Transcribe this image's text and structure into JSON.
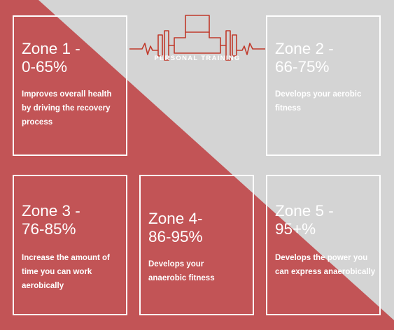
{
  "colors": {
    "red": "#c25456",
    "grey": "#d4d4d4",
    "white": "#ffffff"
  },
  "logo": {
    "icon": "dumbbell-heartbeat-icon",
    "text": "PERSONAL TRAINING"
  },
  "zones": [
    {
      "title_line1": "Zone 1 -",
      "title_line2": "0-65%",
      "description": "Improves overall health by driving the recovery process"
    },
    {
      "title_line1": "Zone 2 -",
      "title_line2": "66-75%",
      "description": "Develops your aerobic fitness"
    },
    {
      "title_line1": "Zone 3 -",
      "title_line2": "76-85%",
      "description": "Increase the amount of time you can work aerobically"
    },
    {
      "title_line1": "Zone 4-",
      "title_line2": "86-95%",
      "description": "Develops your anaerobic fitness"
    },
    {
      "title_line1": "Zone 5 -",
      "title_line2": "95+%",
      "description": "Develops the power you can express anaerobically"
    }
  ]
}
